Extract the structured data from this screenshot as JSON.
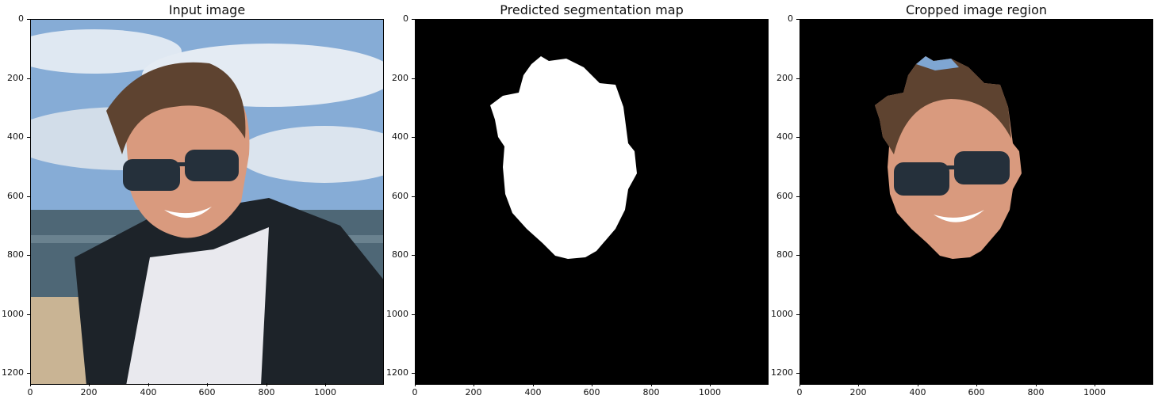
{
  "panels": [
    {
      "title": "Input image"
    },
    {
      "title": "Predicted segmentation map"
    },
    {
      "title": "Cropped image region"
    }
  ],
  "axes": {
    "y_ticks": [
      "0",
      "200",
      "400",
      "600",
      "800",
      "1000",
      "1200"
    ],
    "x_ticks": [
      "0",
      "200",
      "400",
      "600",
      "800",
      "1000"
    ]
  },
  "colors": {
    "sky": "#7fa6d2",
    "sea": "#4d6674",
    "sand": "#c9b494",
    "jacket": "#1d2329",
    "shirt": "#e9e9ee",
    "skin": "#d99a7e",
    "hair": "#5e4330",
    "glasses": "#25303b",
    "mask": "#ffffff",
    "background": "#000000"
  }
}
